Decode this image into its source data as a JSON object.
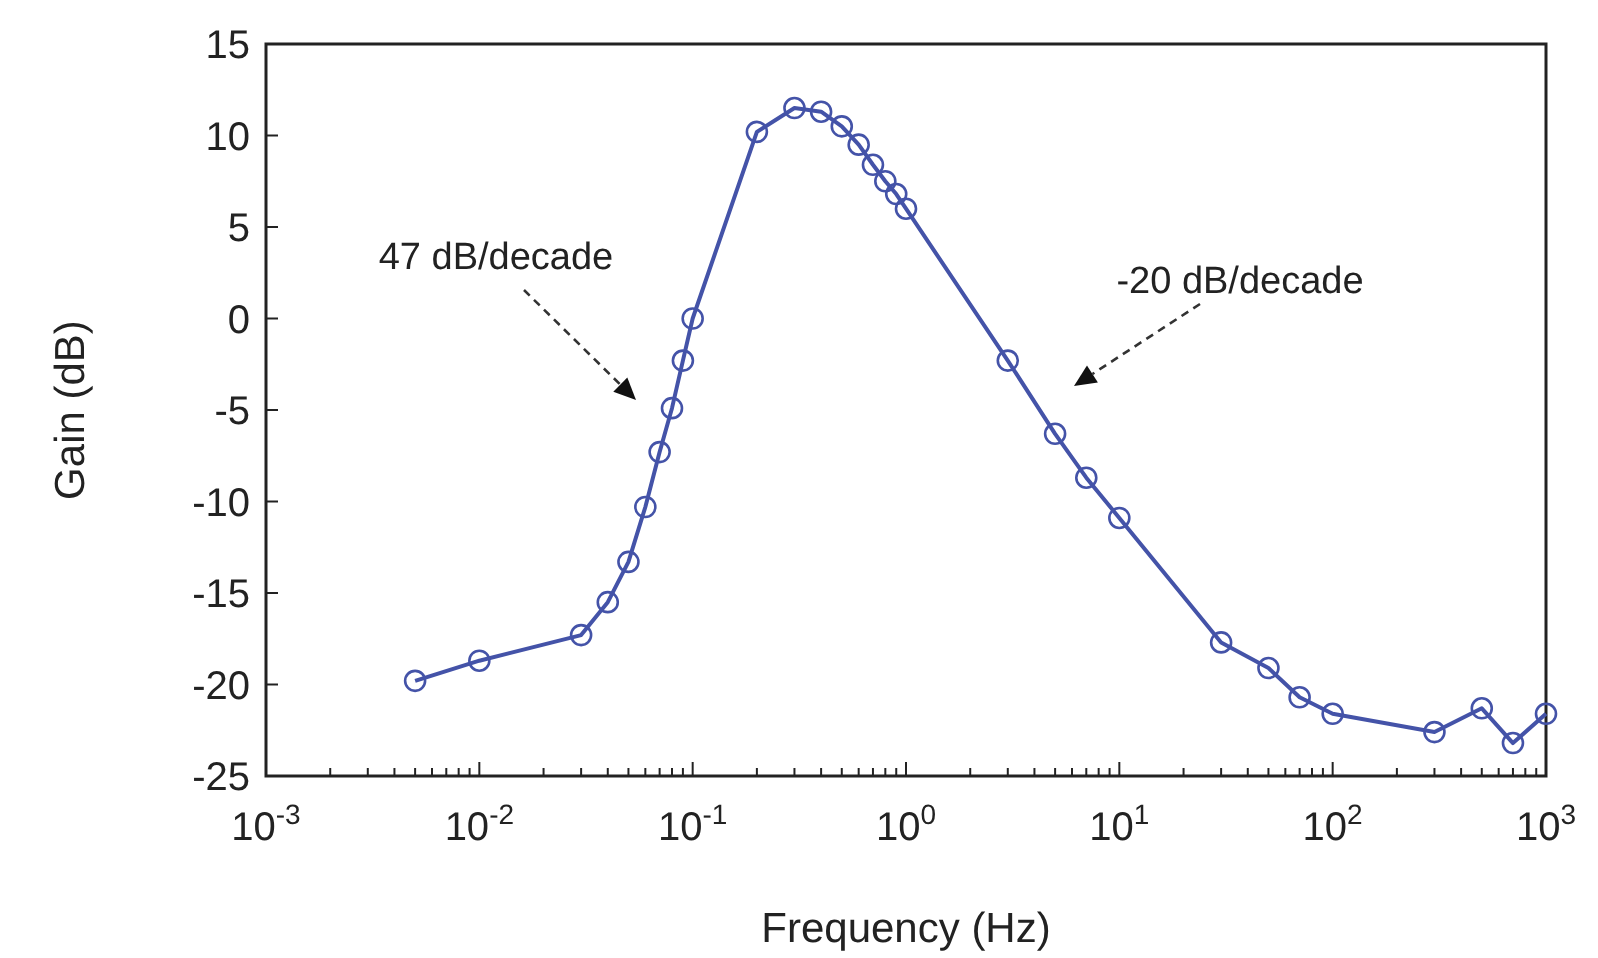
{
  "chart_data": {
    "type": "line",
    "xlabel": "Frequency (Hz)",
    "ylabel": "Gain (dB)",
    "log": "x",
    "xlim": [
      0.001,
      1000
    ],
    "xticks": [
      {
        "value": 0.001,
        "label": "10$^{-3}$"
      },
      {
        "value": 0.01,
        "label": "10$^{-2}$"
      },
      {
        "value": 0.1,
        "label": "10$^{-1}$"
      },
      {
        "value": 1,
        "label": "10$^{0}$"
      },
      {
        "value": 10,
        "label": "10$^{1}$"
      },
      {
        "value": 100,
        "label": "10$^{2}$"
      },
      {
        "value": 1000,
        "label": "10$^{3}$"
      }
    ],
    "ylim": [
      -25,
      15
    ],
    "yticks": [
      -25,
      -20,
      -15,
      -10,
      -5,
      0,
      5,
      10,
      15
    ],
    "grid": false,
    "marker": "circle",
    "line_style": "solid",
    "series": [
      {
        "color": "#4453a8",
        "x": [
          0.005,
          0.01,
          0.03,
          0.04,
          0.05,
          0.06,
          0.07,
          0.08,
          0.09,
          0.1,
          0.2,
          0.3,
          0.4,
          0.5,
          0.6,
          0.7,
          0.8,
          0.9,
          1,
          3,
          5,
          7,
          10,
          30,
          50,
          70,
          100,
          300,
          500,
          700,
          1000
        ],
        "values": [
          -19.8,
          -18.7,
          -17.3,
          -15.5,
          -13.3,
          -10.3,
          -7.3,
          -4.9,
          -2.3,
          0,
          10.2,
          11.5,
          11.3,
          10.5,
          9.5,
          8.4,
          7.5,
          6.8,
          6,
          -2.3,
          -6.3,
          -8.7,
          -10.9,
          -17.7,
          -19.1,
          -20.7,
          -21.6,
          -22.6,
          -21.3,
          -23.2,
          -21.6
        ]
      }
    ],
    "annotations": [
      "47 dB/decade",
      "-20 dB/decade"
    ]
  }
}
